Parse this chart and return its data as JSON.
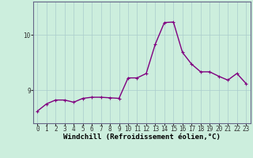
{
  "x": [
    0,
    1,
    2,
    3,
    4,
    5,
    6,
    7,
    8,
    9,
    10,
    11,
    12,
    13,
    14,
    15,
    16,
    17,
    18,
    19,
    20,
    21,
    22,
    23
  ],
  "y": [
    8.62,
    8.75,
    8.82,
    8.82,
    8.78,
    8.85,
    8.87,
    8.87,
    8.86,
    8.85,
    9.22,
    9.22,
    9.3,
    9.83,
    10.22,
    10.23,
    9.68,
    9.47,
    9.33,
    9.33,
    9.25,
    9.18,
    9.3,
    9.12
  ],
  "line_color": "#800080",
  "marker": "+",
  "marker_size": 3,
  "background_color": "#cceedd",
  "grid_color": "#aacccc",
  "xlabel": "Windchill (Refroidissement éolien,°C)",
  "xlabel_fontsize": 6.5,
  "yticks": [
    9,
    10
  ],
  "ylim": [
    8.4,
    10.6
  ],
  "xlim": [
    -0.5,
    23.5
  ],
  "xticks": [
    0,
    1,
    2,
    3,
    4,
    5,
    6,
    7,
    8,
    9,
    10,
    11,
    12,
    13,
    14,
    15,
    16,
    17,
    18,
    19,
    20,
    21,
    22,
    23
  ],
  "tick_fontsize": 5.5,
  "xlabel_fontsize_bold": true,
  "line_width": 1.0
}
